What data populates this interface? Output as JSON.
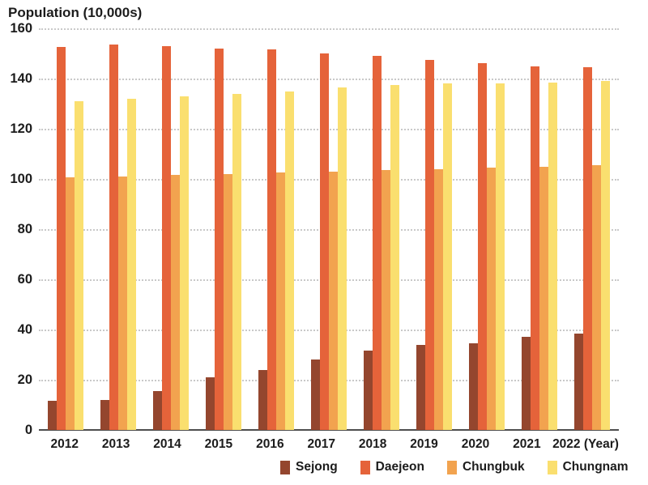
{
  "chart_data": {
    "type": "bar",
    "title": "Population (10,000s)",
    "xlabel_suffix": "(Year)",
    "categories": [
      "2012",
      "2013",
      "2014",
      "2015",
      "2016",
      "2017",
      "2018",
      "2019",
      "2020",
      "2021",
      "2022"
    ],
    "series": [
      {
        "name": "Sejong",
        "color": "#94462E",
        "values": [
          11.5,
          12,
          15.5,
          21,
          24,
          28,
          31.5,
          34,
          34.5,
          37,
          38.5
        ]
      },
      {
        "name": "Daejeon",
        "color": "#E5633A",
        "values": [
          152.5,
          153.5,
          153,
          152,
          151.5,
          150,
          149,
          147.5,
          146,
          145,
          144.5
        ]
      },
      {
        "name": "Chungbuk",
        "color": "#F2A34F",
        "values": [
          100.5,
          101,
          101.5,
          102,
          102.5,
          103,
          103.5,
          104,
          104.5,
          105,
          105.5
        ]
      },
      {
        "name": "Chungnam",
        "color": "#FADF6F",
        "values": [
          131,
          132,
          133,
          134,
          135,
          136.5,
          137.5,
          138,
          138,
          138.5,
          139
        ]
      }
    ],
    "ylim": [
      0,
      160
    ],
    "yticks": [
      160,
      140,
      120,
      100,
      80,
      60,
      40,
      20,
      0
    ],
    "grid": "horizontal-dotted",
    "legend_position": "bottom"
  }
}
